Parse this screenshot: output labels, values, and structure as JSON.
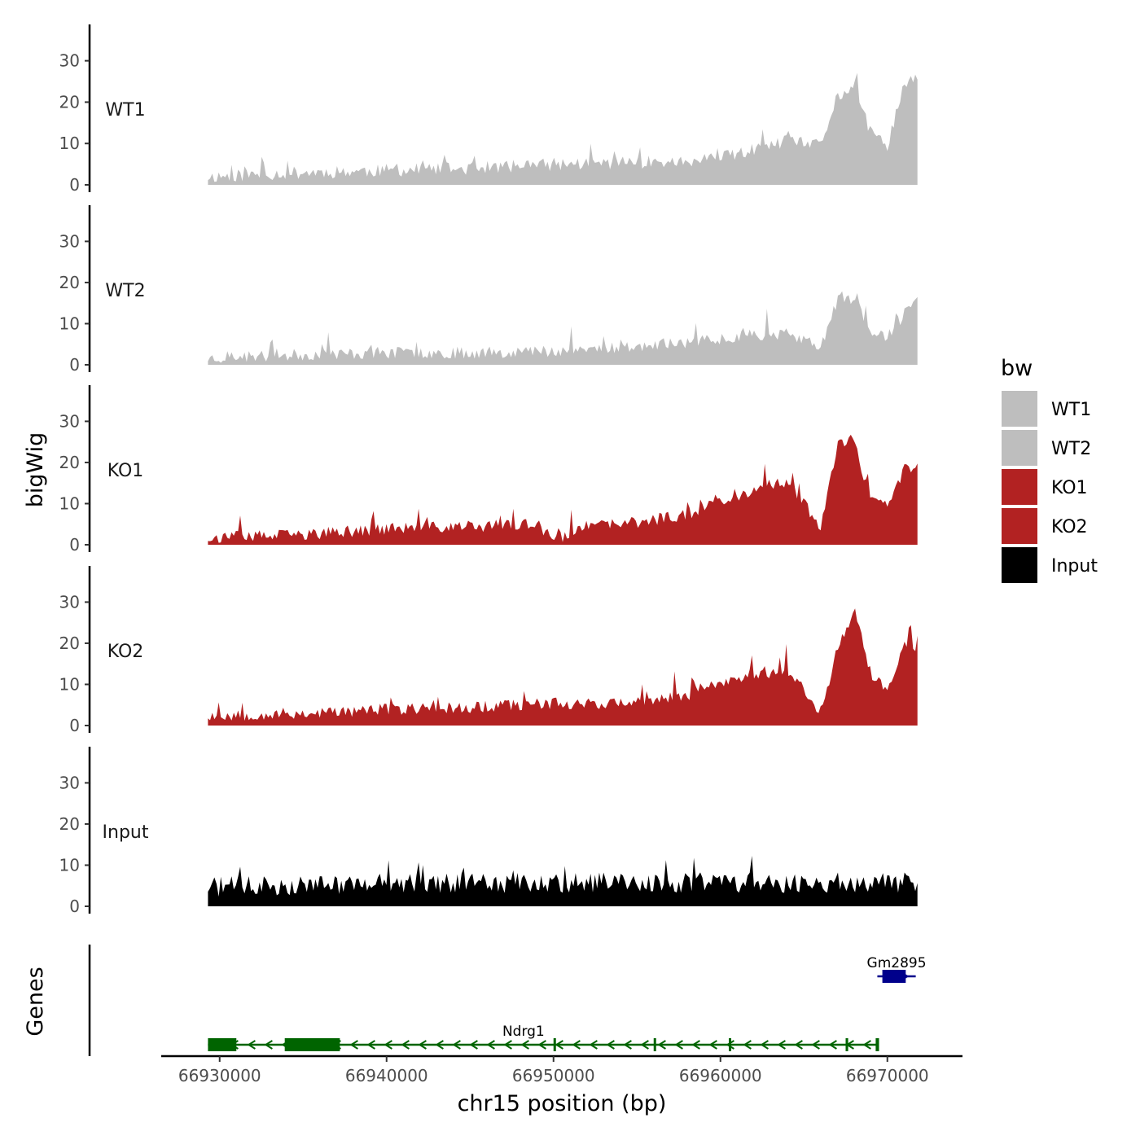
{
  "chart_data": {
    "type": "area",
    "chromosome": "chr15",
    "xlabel": "chr15 position (bp)",
    "ylabel": "bigWig",
    "genes_panel_label": "Genes",
    "xlim": [
      66926500,
      66974500
    ],
    "data_range": [
      66929300,
      66971800
    ],
    "x_ticks": [
      66930000,
      66940000,
      66950000,
      66960000,
      66970000
    ],
    "x_tick_labels": [
      "66930000",
      "66940000",
      "66950000",
      "66960000",
      "66970000"
    ],
    "ylim": [
      0,
      38
    ],
    "y_ticks": [
      0,
      10,
      20,
      30
    ],
    "y_tick_labels": [
      "0",
      "10",
      "20",
      "30"
    ],
    "legend": {
      "title": "bw",
      "entries": [
        {
          "label": "WT1",
          "color": "#BEBEBE"
        },
        {
          "label": "WT2",
          "color": "#BEBEBE"
        },
        {
          "label": "KO1",
          "color": "#B22222"
        },
        {
          "label": "KO2",
          "color": "#B22222"
        },
        {
          "label": "Input",
          "color": "#000000"
        }
      ]
    },
    "series": [
      {
        "name": "WT1",
        "color": "#BEBEBE",
        "seed": 11,
        "noise": 3.2,
        "x": [
          66929300,
          66935000,
          66940000,
          66945000,
          66950000,
          66955000,
          66958000,
          66960000,
          66962000,
          66964000,
          66966000,
          66967000,
          66968000,
          66969000,
          66970000,
          66971000,
          66971800
        ],
        "y": [
          1.5,
          2.5,
          3,
          3.5,
          4.5,
          5,
          5,
          6,
          8,
          10,
          9,
          21,
          23,
          12,
          9,
          24,
          25
        ]
      },
      {
        "name": "WT2",
        "color": "#BEBEBE",
        "seed": 23,
        "noise": 3.0,
        "x": [
          66929300,
          66935000,
          66940000,
          66945000,
          66950000,
          66955000,
          66958000,
          66960000,
          66962000,
          66964000,
          66966000,
          66967000,
          66968000,
          66969000,
          66970000,
          66971000,
          66971800
        ],
        "y": [
          1.2,
          2,
          2.5,
          2.5,
          3,
          4,
          5,
          6,
          7,
          7,
          4,
          15,
          16,
          8,
          6,
          12,
          15
        ]
      },
      {
        "name": "KO1",
        "color": "#B22222",
        "seed": 37,
        "noise": 3.0,
        "x": [
          66929300,
          66935000,
          66940000,
          66945000,
          66949000,
          66950000,
          66952000,
          66955000,
          66958000,
          66960000,
          66962000,
          66964000,
          66966000,
          66967000,
          66968000,
          66969000,
          66970000,
          66971000,
          66971800
        ],
        "y": [
          1.2,
          2,
          3.5,
          4,
          4.5,
          0.5,
          4,
          5,
          7,
          10,
          13,
          15,
          4,
          24,
          25,
          10,
          9,
          18,
          18
        ]
      },
      {
        "name": "KO2",
        "color": "#B22222",
        "seed": 53,
        "noise": 3.0,
        "x": [
          66929300,
          66935000,
          66940000,
          66945000,
          66950000,
          66955000,
          66958000,
          66960000,
          66962000,
          66964000,
          66966000,
          66967000,
          66968000,
          66969000,
          66970000,
          66971000,
          66971800
        ],
        "y": [
          2,
          2.5,
          3.5,
          4,
          5,
          5,
          7,
          10,
          12,
          13,
          3,
          18,
          28,
          12,
          8,
          19,
          19
        ]
      },
      {
        "name": "Input",
        "color": "#000000",
        "seed": 71,
        "noise": 5.0,
        "x": [
          66929300,
          66935000,
          66940000,
          66945000,
          66950000,
          66955000,
          66960000,
          66965000,
          66971800
        ],
        "y": [
          4,
          4.5,
          5,
          5,
          5,
          5,
          5,
          5,
          5
        ]
      }
    ],
    "genes": [
      {
        "name": "Ndrg1",
        "strand": "-",
        "color": "#006400",
        "row": "lower",
        "start": 66929300,
        "end": 66969500,
        "exons": [
          [
            66929300,
            66931000
          ],
          [
            66933900,
            66937200
          ],
          [
            66950000,
            66950100
          ],
          [
            66956000,
            66956100
          ],
          [
            66960500,
            66960600
          ],
          [
            66967500,
            66967650
          ],
          [
            66969300,
            66969500
          ]
        ]
      },
      {
        "name": "Gm2895",
        "strand": "+",
        "color": "#00008B",
        "row": "upper",
        "start": 66969400,
        "end": 66971700,
        "exons": [
          [
            66969700,
            66971100
          ]
        ]
      }
    ]
  }
}
